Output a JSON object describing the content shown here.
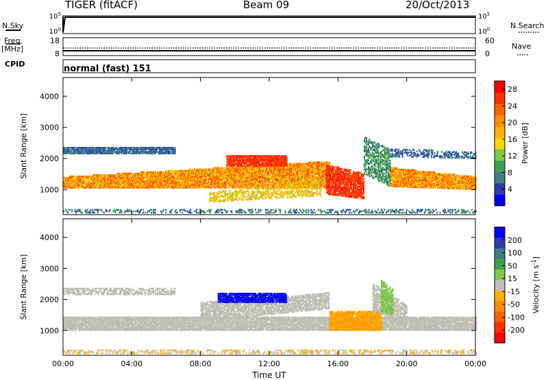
{
  "header": {
    "radar": "TIGER (fitACF)",
    "beam": "Beam 09",
    "date": "20/Oct/2013"
  },
  "strips": {
    "nsky_label": "N.Sky",
    "nsearch_label": "N.Search",
    "freq_label": "Freq.",
    "freq_unit": "[MHz]",
    "nave_label": "Nave",
    "cpid_label": "CPID",
    "cpid_value": "normal (fast) 151",
    "noise_ticks": [
      "10^5",
      "10^0"
    ],
    "freq_ticks": [
      "18",
      "8"
    ],
    "nave_ticks": [
      "60",
      "0"
    ]
  },
  "chart_data": [
    {
      "type": "heatmap",
      "name": "power",
      "ylabel": "Slant Range [km]",
      "yticks": [
        1000,
        2000,
        3000,
        4000
      ],
      "ylim": [
        200,
        4600
      ],
      "xticks": [
        "00:00",
        "04:00",
        "08:00",
        "12:00",
        "16:00",
        "20:00",
        "00:00"
      ],
      "xlim": [
        0,
        24
      ],
      "colorbar": {
        "label": "Power [dB]",
        "ticks": [
          4,
          8,
          12,
          16,
          20,
          24,
          28
        ],
        "range": [
          0,
          30
        ],
        "colors": [
          "#0000ff",
          "#2e3cb2",
          "#3f7f7f",
          "#3fa04f",
          "#7fc93f",
          "#ffd400",
          "#ffb000",
          "#ff8c00",
          "#ff6000",
          "#ff3000",
          "#ff0000"
        ]
      },
      "regions": [
        {
          "desc": "main echo band",
          "x0": 0,
          "x1": 15.5,
          "y0_start": 1050,
          "y1_start": 1400,
          "y0_end": 1050,
          "y1_end": 1900,
          "power": 22
        },
        {
          "desc": "upper blue band",
          "x0": 0,
          "x1": 6.5,
          "y0": 2150,
          "y1": 2350,
          "power": 5
        },
        {
          "desc": "high power patch",
          "x0": 9.5,
          "x1": 13,
          "y0": 1750,
          "y1": 2100,
          "power": 27
        },
        {
          "desc": "post-16 band",
          "x0": 19,
          "x1": 24,
          "y0": 1000,
          "y1": 1700,
          "power": 21
        },
        {
          "desc": "near range intense",
          "x0": 15.3,
          "x1": 17.5,
          "y0": 850,
          "y1": 1800,
          "power": 28
        }
      ]
    },
    {
      "type": "heatmap",
      "name": "velocity",
      "ylabel": "Slant Range [km]",
      "yticks": [
        1000,
        2000,
        3000,
        4000
      ],
      "ylim": [
        200,
        4600
      ],
      "xticks": [
        "00:00",
        "04:00",
        "08:00",
        "12:00",
        "16:00",
        "20:00",
        "00:00"
      ],
      "xlabel": "Time UT",
      "xlim": [
        0,
        24
      ],
      "colorbar": {
        "label": "Velocity [m s^-1]",
        "ticks": [
          200,
          100,
          50,
          15,
          -15,
          -50,
          -100,
          -200
        ],
        "colors": [
          "#0000ff",
          "#2e3cb2",
          "#3f7f7f",
          "#3fa04f",
          "#7fc93f",
          "#bebebe",
          "#ffb000",
          "#ff8c00",
          "#ff6000",
          "#ff3000",
          "#ff0000"
        ]
      },
      "regions": [
        {
          "desc": "ground scatter band",
          "x0": 0,
          "x1": 24,
          "velocity": 0
        },
        {
          "desc": "blue patch",
          "x0": 9,
          "x1": 13,
          "y0": 1900,
          "y1": 2200,
          "velocity": 200
        },
        {
          "desc": "orange patch",
          "x0": 15.5,
          "x1": 18.5,
          "y0": 1000,
          "y1": 1600,
          "velocity": -50
        }
      ]
    }
  ]
}
